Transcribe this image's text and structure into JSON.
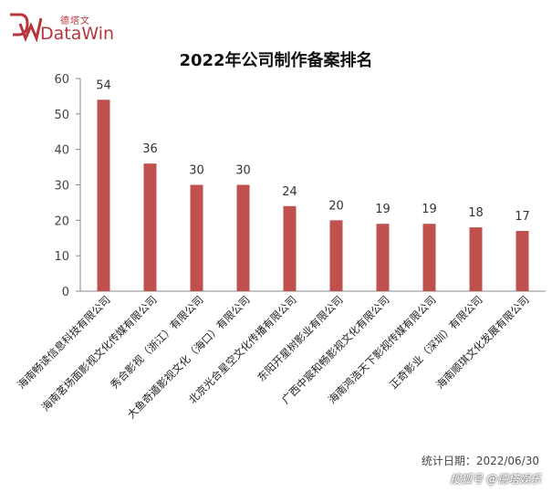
{
  "logo": {
    "cn": "德塔文",
    "en": "DataWin"
  },
  "footer": {
    "date_label": "统计日期：2022/06/30"
  },
  "watermark": {
    "text": "搜狐号 @德塔娱乐"
  },
  "colors": {
    "bar": "#c0504d",
    "axis": "#888888",
    "grid": "#bfbfbf"
  },
  "chart_data": {
    "type": "bar",
    "title": "2022年公司制作备案排名",
    "categories": [
      "海南畅读信息科技有限公司",
      "海南茗场面影视文化传媒有限公司",
      "秀合影视（浙江）有限公司",
      "大鱼奇遁影视文化（海口）有限公司",
      "北京光合星空文化传播有限公司",
      "东阳开星树影业有限公司",
      "广西中宸和畅影视文化有限公司",
      "海南鸿浩天下影视传媒有限公司",
      "正奇影业（深圳）有限公司",
      "海南顺琪文化发展有限公司"
    ],
    "values": [
      54,
      36,
      30,
      30,
      24,
      20,
      19,
      19,
      18,
      17
    ],
    "ylim": [
      0,
      60
    ],
    "yticks": [
      0,
      10,
      20,
      30,
      40,
      50,
      60
    ],
    "grid": false,
    "data_labels": true
  }
}
